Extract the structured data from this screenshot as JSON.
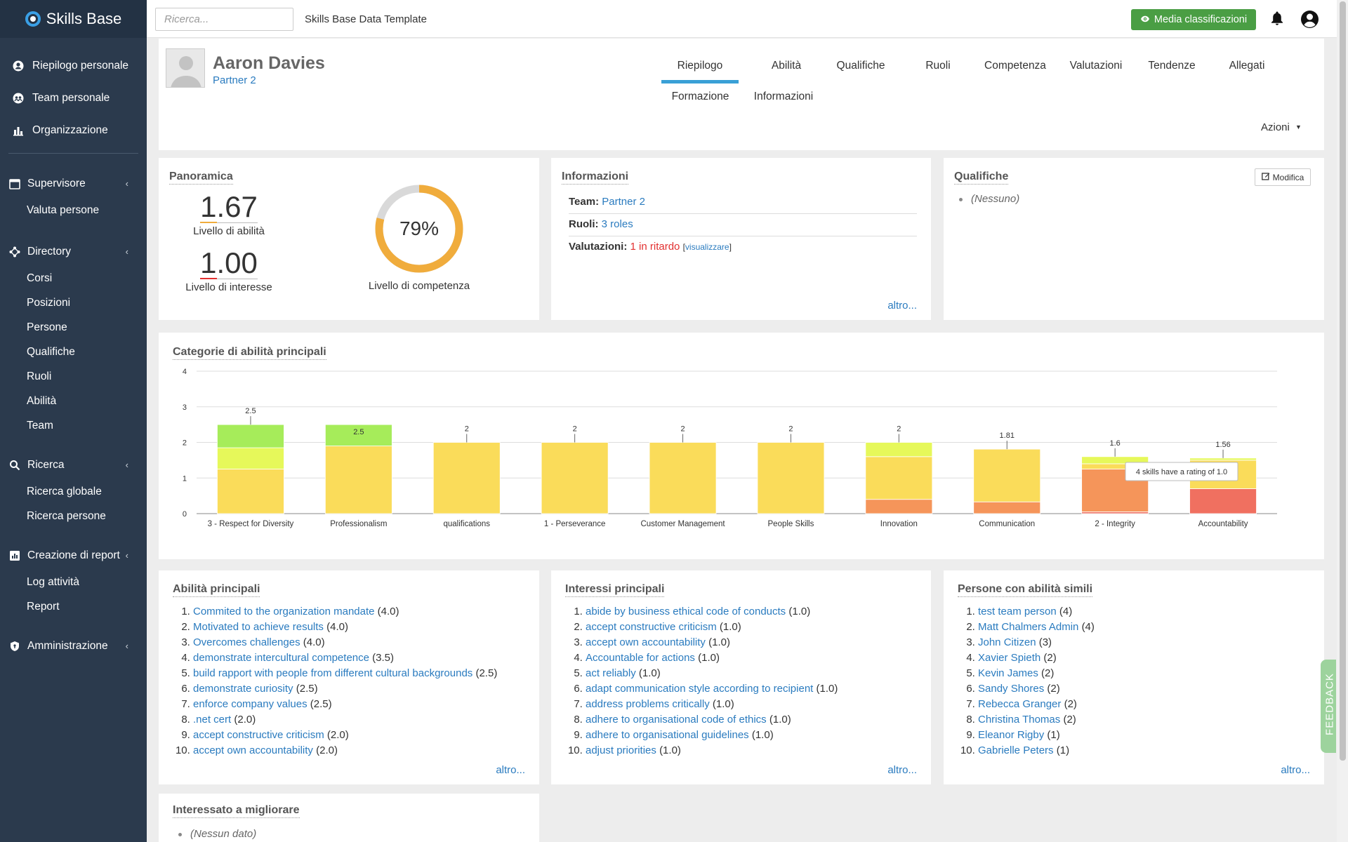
{
  "brand": "Skills Base",
  "nav": {
    "main": [
      {
        "label": "Riepilogo personale",
        "icon": "person-circle-icon"
      },
      {
        "label": "Team personale",
        "icon": "team-icon"
      },
      {
        "label": "Organizzazione",
        "icon": "org-chart-icon"
      }
    ],
    "sections": [
      {
        "label": "Supervisore",
        "icon": "calendar-icon",
        "items": [
          "Valuta persone"
        ]
      },
      {
        "label": "Directory",
        "icon": "directory-icon",
        "items": [
          "Corsi",
          "Posizioni",
          "Persone",
          "Qualifiche",
          "Ruoli",
          "Abilità",
          "Team"
        ]
      },
      {
        "label": "Ricerca",
        "icon": "search-icon",
        "items": [
          "Ricerca globale",
          "Ricerca persone"
        ]
      },
      {
        "label": "Creazione di report",
        "icon": "report-chart-icon",
        "items": [
          "Log attività",
          "Report"
        ]
      },
      {
        "label": "Amministrazione",
        "icon": "shield-icon",
        "items": []
      }
    ]
  },
  "topbar": {
    "search_placeholder": "Ricerca...",
    "app_title": "Skills Base Data Template",
    "avg_button": "Media classificazioni"
  },
  "profile": {
    "name": "Aaron Davies",
    "role": "Partner 2",
    "tabs": [
      "Riepilogo",
      "Abilità",
      "Qualifiche",
      "Ruoli",
      "Competenza",
      "Valutazioni",
      "Tendenze",
      "Allegati",
      "Formazione",
      "Informazioni"
    ],
    "active_tab": "Riepilogo",
    "actions": "Azioni"
  },
  "panoramica": {
    "title": "Panoramica",
    "skill_level": "1.67",
    "skill_label": "Livello di abilità",
    "interest_level": "1.00",
    "interest_label": "Livello di interesse",
    "competency_pct": 79,
    "competency_text": "79%",
    "competency_label": "Livello di competenza",
    "colors": {
      "donut_fill": "#f0ac3c",
      "donut_track": "#d9d9d9"
    }
  },
  "informazioni": {
    "title": "Informazioni",
    "team_label": "Team:",
    "team_value": "Partner 2",
    "roles_label": "Ruoli:",
    "roles_value": "3 roles",
    "eval_label": "Valutazioni:",
    "eval_value": "1 in ritardo",
    "eval_link": "visualizzare",
    "more": "altro..."
  },
  "qualifiche": {
    "title": "Qualifiche",
    "edit_button": "Modifica",
    "empty": "(Nessuno)"
  },
  "chart_data": {
    "type": "bar",
    "title": "Categorie di abilità principali",
    "ylim": [
      0,
      4
    ],
    "yticks": [
      "0",
      "1",
      "2",
      "3",
      "4"
    ],
    "grid": true,
    "categories": [
      "3 - Respect for Diversity",
      "Professionalism",
      "qualifications",
      "1 - Perseverance",
      "Customer Management",
      "People Skills",
      "Innovation",
      "Communication",
      "2 - Integrity",
      "Accountability"
    ],
    "values": [
      2.5,
      2.5,
      2,
      2,
      2,
      2,
      2,
      1.81,
      1.6,
      1.56
    ],
    "value_labels": [
      "2.5",
      "2.5",
      "2",
      "2",
      "2",
      "2",
      "2",
      "1.81",
      "1.6",
      "1.56"
    ],
    "series": [
      {
        "rating": "1.0",
        "color": "#f07060",
        "values": [
          0,
          0,
          0,
          0,
          0,
          0,
          0,
          0,
          0.05,
          0.7
        ]
      },
      {
        "rating": "1.5",
        "color": "#f5955a",
        "values": [
          0,
          0,
          0,
          0,
          0,
          0,
          0.4,
          0.33,
          1.2,
          0
        ]
      },
      {
        "rating": "2.0",
        "color": "#fadc5a",
        "values": [
          1.25,
          1.9,
          2,
          2,
          2,
          2,
          1.2,
          1.48,
          0.15,
          0.8
        ]
      },
      {
        "rating": "2.5",
        "color": "#e6f85a",
        "values": [
          0.6,
          0,
          0,
          0,
          0,
          0,
          0.4,
          0,
          0.2,
          0.06
        ]
      },
      {
        "rating": "3.0",
        "color": "#a6ec5a",
        "values": [
          0.65,
          0.6,
          0,
          0,
          0,
          0,
          0,
          0,
          0,
          0
        ]
      }
    ],
    "tooltip": "4 skills have a rating of 1.0"
  },
  "abilita": {
    "title": "Abilità principali",
    "items": [
      {
        "name": "Commited to the organization mandate",
        "count": "(4.0)"
      },
      {
        "name": "Motivated to achieve results",
        "count": "(4.0)"
      },
      {
        "name": "Overcomes challenges",
        "count": "(4.0)"
      },
      {
        "name": "demonstrate intercultural competence",
        "count": "(3.5)"
      },
      {
        "name": "build rapport with people from different cultural backgrounds",
        "count": "(2.5)"
      },
      {
        "name": "demonstrate curiosity",
        "count": "(2.5)"
      },
      {
        "name": "enforce company values",
        "count": "(2.5)"
      },
      {
        "name": ".net cert",
        "count": "(2.0)"
      },
      {
        "name": "accept constructive criticism",
        "count": "(2.0)"
      },
      {
        "name": "accept own accountability",
        "count": "(2.0)"
      }
    ],
    "more": "altro..."
  },
  "interessi": {
    "title": "Interessi principali",
    "items": [
      {
        "name": "abide by business ethical code of conducts",
        "count": "(1.0)"
      },
      {
        "name": "accept constructive criticism",
        "count": "(1.0)"
      },
      {
        "name": "accept own accountability",
        "count": "(1.0)"
      },
      {
        "name": "Accountable for actions",
        "count": "(1.0)"
      },
      {
        "name": "act reliably",
        "count": "(1.0)"
      },
      {
        "name": "adapt communication style according to recipient",
        "count": "(1.0)"
      },
      {
        "name": "address problems critically",
        "count": "(1.0)"
      },
      {
        "name": "adhere to organisational code of ethics",
        "count": "(1.0)"
      },
      {
        "name": "adhere to organisational guidelines",
        "count": "(1.0)"
      },
      {
        "name": "adjust priorities",
        "count": "(1.0)"
      }
    ],
    "more": "altro..."
  },
  "persone": {
    "title": "Persone con abilità simili",
    "items": [
      {
        "name": "test team person",
        "count": "(4)"
      },
      {
        "name": "Matt Chalmers Admin",
        "count": "(4)"
      },
      {
        "name": "John Citizen",
        "count": "(3)"
      },
      {
        "name": "Xavier Spieth",
        "count": "(2)"
      },
      {
        "name": "Kevin James",
        "count": "(2)"
      },
      {
        "name": "Sandy Shores",
        "count": "(2)"
      },
      {
        "name": "Rebecca Granger",
        "count": "(2)"
      },
      {
        "name": "Christina Thomas",
        "count": "(2)"
      },
      {
        "name": "Eleanor Rigby",
        "count": "(1)"
      },
      {
        "name": "Gabrielle Peters",
        "count": "(1)"
      }
    ],
    "more": "altro..."
  },
  "migliorare": {
    "title": "Interessato a migliorare",
    "empty": "(Nessun dato)"
  },
  "feedback": "FEEDBACK"
}
